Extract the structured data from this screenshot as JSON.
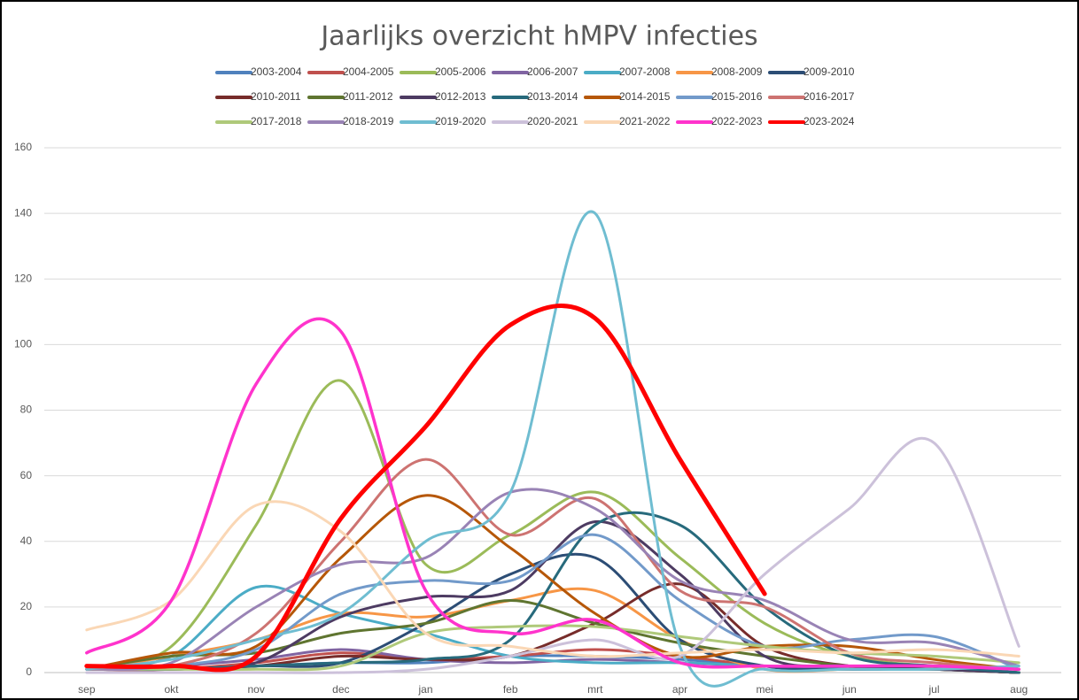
{
  "chart_data": {
    "type": "line",
    "title": "Jaarlijks overzicht hMPV infecties",
    "categories": [
      "sep",
      "okt",
      "nov",
      "dec",
      "jan",
      "feb",
      "mrt",
      "apr",
      "mei",
      "jun",
      "jul",
      "aug"
    ],
    "ylim": [
      0,
      160
    ],
    "yticks": [
      0,
      20,
      40,
      60,
      80,
      100,
      120,
      140,
      160
    ],
    "grid": true,
    "smooth": true,
    "legend": "top",
    "series": [
      {
        "name": "2003-2004",
        "color": "#4f81bd",
        "width": 3,
        "values": [
          1,
          1,
          2,
          3,
          3,
          5,
          5,
          4,
          2,
          1,
          1,
          0
        ]
      },
      {
        "name": "2004-2005",
        "color": "#c0504d",
        "width": 3,
        "values": [
          1,
          1,
          3,
          6,
          4,
          5,
          7,
          5,
          2,
          1,
          1,
          0
        ]
      },
      {
        "name": "2005-2006",
        "color": "#9bbb59",
        "width": 3,
        "values": [
          1,
          8,
          45,
          89,
          33,
          42,
          55,
          35,
          15,
          5,
          2,
          1
        ]
      },
      {
        "name": "2006-2007",
        "color": "#8064a2",
        "width": 3,
        "values": [
          1,
          2,
          4,
          7,
          4,
          3,
          4,
          3,
          2,
          1,
          1,
          0
        ]
      },
      {
        "name": "2007-2008",
        "color": "#4bacc6",
        "width": 3,
        "values": [
          1,
          5,
          26,
          18,
          12,
          5,
          3,
          3,
          2,
          1,
          1,
          0
        ]
      },
      {
        "name": "2008-2009",
        "color": "#f79646",
        "width": 3,
        "values": [
          1,
          5,
          10,
          18,
          17,
          22,
          25,
          10,
          1,
          1,
          1,
          0
        ]
      },
      {
        "name": "2009-2010",
        "color": "#2c4d75",
        "width": 3,
        "values": [
          1,
          1,
          2,
          3,
          15,
          30,
          35,
          10,
          2,
          1,
          1,
          0
        ]
      },
      {
        "name": "2010-2011",
        "color": "#772c2a",
        "width": 3,
        "values": [
          1,
          1,
          2,
          5,
          4,
          5,
          15,
          27,
          8,
          2,
          1,
          0
        ]
      },
      {
        "name": "2011-2012",
        "color": "#5f7530",
        "width": 3,
        "values": [
          1,
          5,
          6,
          12,
          15,
          22,
          15,
          9,
          5,
          2,
          1,
          0
        ]
      },
      {
        "name": "2012-2013",
        "color": "#4d3b62",
        "width": 3,
        "values": [
          1,
          1,
          3,
          17,
          23,
          25,
          46,
          30,
          5,
          2,
          1,
          0
        ]
      },
      {
        "name": "2013-2014",
        "color": "#276a7c",
        "width": 3,
        "values": [
          1,
          1,
          2,
          3,
          4,
          10,
          45,
          45,
          20,
          5,
          2,
          0
        ]
      },
      {
        "name": "2014-2015",
        "color": "#b65708",
        "width": 3,
        "values": [
          1,
          6,
          8,
          35,
          54,
          38,
          18,
          5,
          8,
          8,
          4,
          1
        ]
      },
      {
        "name": "2015-2016",
        "color": "#729aca",
        "width": 3,
        "values": [
          1,
          2,
          7,
          24,
          28,
          28,
          42,
          22,
          8,
          10,
          11,
          1
        ]
      },
      {
        "name": "2016-2017",
        "color": "#cd7371",
        "width": 3,
        "values": [
          1,
          2,
          12,
          40,
          65,
          42,
          53,
          25,
          20,
          6,
          3,
          1
        ]
      },
      {
        "name": "2017-2018",
        "color": "#afc97a",
        "width": 3,
        "values": [
          1,
          1,
          1,
          2,
          12,
          14,
          14,
          11,
          8,
          6,
          5,
          3
        ]
      },
      {
        "name": "2018-2019",
        "color": "#9983b5",
        "width": 3,
        "values": [
          1,
          3,
          20,
          33,
          35,
          55,
          50,
          28,
          22,
          10,
          9,
          2
        ]
      },
      {
        "name": "2019-2020",
        "color": "#6fbdd1",
        "width": 3,
        "values": [
          1,
          4,
          10,
          18,
          40,
          55,
          140,
          8,
          1,
          1,
          1,
          2
        ]
      },
      {
        "name": "2020-2021",
        "color": "#ccc1da",
        "width": 3,
        "values": [
          0,
          0,
          0,
          0,
          1,
          5,
          10,
          5,
          30,
          50,
          70,
          8
        ]
      },
      {
        "name": "2021-2022",
        "color": "#fad7b5",
        "width": 3,
        "values": [
          13,
          22,
          51,
          43,
          12,
          8,
          5,
          6,
          7,
          6,
          7,
          5
        ]
      },
      {
        "name": "2022-2023",
        "color": "#ff33cc",
        "width": 3.5,
        "values": [
          6,
          22,
          88,
          104,
          25,
          12,
          16,
          3,
          2,
          2,
          2,
          1
        ]
      },
      {
        "name": "2023-2024",
        "color": "#ff0000",
        "width": 5,
        "values": [
          2,
          2,
          5,
          47,
          75,
          106,
          108,
          65,
          24,
          null,
          null,
          null
        ]
      }
    ]
  }
}
